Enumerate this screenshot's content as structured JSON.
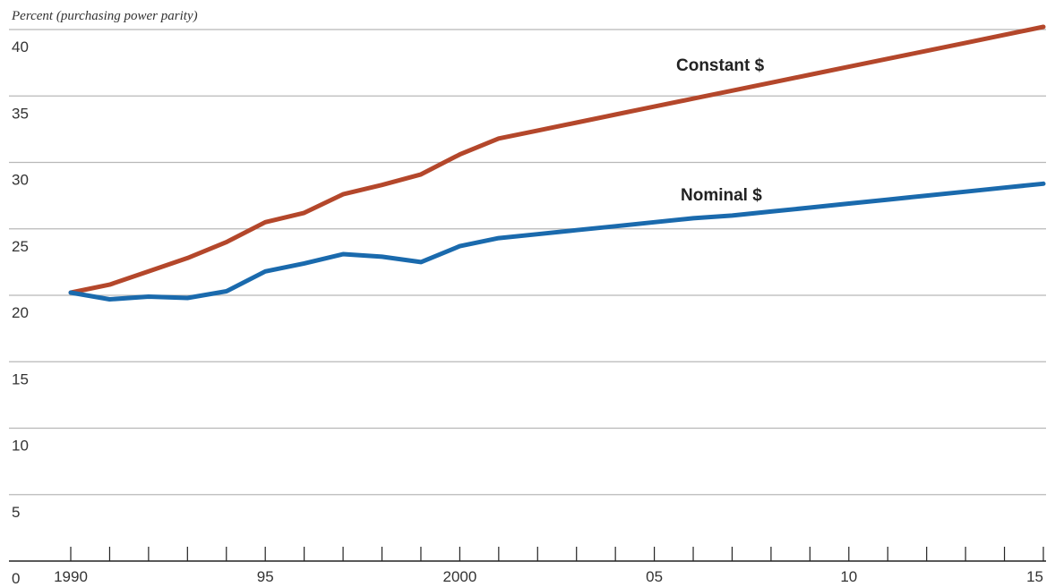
{
  "chart_data": {
    "type": "line",
    "ylabel": "Percent (purchasing power parity)",
    "xlabel": "",
    "title": "",
    "x": [
      1990,
      1991,
      1992,
      1993,
      1994,
      1995,
      1996,
      1997,
      1998,
      1999,
      2000,
      2001,
      2002,
      2003,
      2004,
      2005,
      2006,
      2007,
      2008,
      2009,
      2010,
      2011,
      2012,
      2013,
      2014,
      2015
    ],
    "xlim": [
      1990,
      2015
    ],
    "ylim": [
      0,
      40
    ],
    "yticks": [
      0,
      5,
      10,
      15,
      20,
      25,
      30,
      35,
      40
    ],
    "ytick_labels": [
      "0",
      "5",
      "10",
      "15",
      "20",
      "25",
      "30",
      "35",
      "40"
    ],
    "xticks": [
      1990,
      1995,
      2000,
      2005,
      2010,
      2015
    ],
    "xtick_labels": [
      "1990",
      "95",
      "2000",
      "05",
      "10",
      "15"
    ],
    "grid": true,
    "series": [
      {
        "name": "Constant $",
        "color": "#b4472b",
        "values": [
          20.2,
          20.8,
          21.8,
          22.8,
          24.0,
          25.5,
          26.2,
          27.6,
          28.3,
          29.1,
          30.6,
          31.8,
          32.4,
          33.0,
          33.6,
          34.2,
          34.8,
          35.4,
          36.0,
          36.6,
          37.2,
          37.8,
          38.4,
          39.0,
          39.6,
          40.2
        ]
      },
      {
        "name": "Nominal $",
        "color": "#1a6aad",
        "values": [
          20.2,
          19.7,
          19.9,
          19.8,
          20.3,
          21.8,
          22.4,
          23.1,
          22.9,
          22.5,
          23.7,
          24.3,
          24.6,
          24.9,
          25.2,
          25.5,
          25.8,
          26.0,
          26.3,
          26.6,
          26.9,
          27.2,
          27.5,
          27.8,
          28.1,
          28.4
        ]
      }
    ]
  }
}
